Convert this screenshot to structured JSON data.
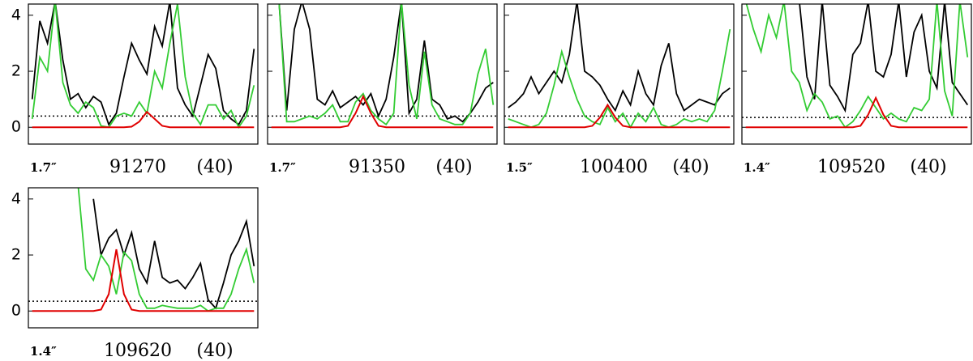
{
  "chart_data": [
    {
      "type": "line",
      "beam": "1.7″",
      "label": "91270",
      "note": "(40)",
      "ylim": [
        -0.6,
        4.4
      ],
      "yticks": [
        0,
        2,
        4
      ],
      "hline": 0.4,
      "series": [
        {
          "color": "#000000",
          "values": [
            1.0,
            3.8,
            3.0,
            4.5,
            2.4,
            1.0,
            1.2,
            0.7,
            1.1,
            0.9,
            0.1,
            0.5,
            1.8,
            3.0,
            2.4,
            1.9,
            3.6,
            2.9,
            4.5,
            1.4,
            0.8,
            0.4,
            1.5,
            2.6,
            2.1,
            0.6,
            0.3,
            0.1,
            0.6,
            2.8
          ]
        },
        {
          "color": "#33cc33",
          "values": [
            0.3,
            2.5,
            2.0,
            4.5,
            1.6,
            0.8,
            0.5,
            0.9,
            0.7,
            0.05,
            0.0,
            0.4,
            0.5,
            0.4,
            0.9,
            0.5,
            2.0,
            1.4,
            3.0,
            4.4,
            1.8,
            0.5,
            0.1,
            0.8,
            0.8,
            0.3,
            0.6,
            0.0,
            0.4,
            1.5
          ]
        },
        {
          "color": "#e00000",
          "values": [
            0,
            0,
            0,
            0,
            0,
            0,
            0,
            0,
            0,
            0,
            0,
            0,
            0,
            0.02,
            0.2,
            0.55,
            0.3,
            0.05,
            0,
            0,
            0,
            0,
            0,
            0,
            0,
            0,
            0,
            0,
            0,
            0
          ]
        }
      ]
    },
    {
      "type": "line",
      "beam": "1.7″",
      "label": "91350",
      "note": "(40)",
      "ylim": [
        -0.6,
        4.4
      ],
      "yticks": [
        0,
        2,
        4
      ],
      "hline": 0.4,
      "series": [
        {
          "color": "#000000",
          "values": [
            4.5,
            4.5,
            0.6,
            3.5,
            4.5,
            3.5,
            1.0,
            0.8,
            1.3,
            0.7,
            0.9,
            1.1,
            0.8,
            1.2,
            0.4,
            1.0,
            2.5,
            4.5,
            0.5,
            1.0,
            3.1,
            1.0,
            0.8,
            0.3,
            0.4,
            0.2,
            0.5,
            0.9,
            1.4,
            1.6
          ]
        },
        {
          "color": "#33cc33",
          "values": [
            4.5,
            4.5,
            0.2,
            0.2,
            0.3,
            0.4,
            0.3,
            0.5,
            0.8,
            0.2,
            0.2,
            0.9,
            1.2,
            0.6,
            0.3,
            0.1,
            0.5,
            4.5,
            1.5,
            0.3,
            2.7,
            0.8,
            0.3,
            0.2,
            0.1,
            0.1,
            0.5,
            1.9,
            2.8,
            0.8
          ]
        },
        {
          "color": "#e00000",
          "values": [
            0,
            0,
            0,
            0,
            0,
            0,
            0,
            0,
            0,
            0,
            0.05,
            0.5,
            1.1,
            0.5,
            0.05,
            0,
            0,
            0,
            0,
            0,
            0,
            0,
            0,
            0,
            0,
            0,
            0,
            0,
            0,
            0
          ]
        }
      ]
    },
    {
      "type": "line",
      "beam": "1.5″",
      "label": "100400",
      "note": "(40)",
      "ylim": [
        -0.6,
        4.4
      ],
      "yticks": [
        0,
        2,
        4
      ],
      "hline": 0.4,
      "series": [
        {
          "color": "#000000",
          "values": [
            0.7,
            0.9,
            1.2,
            1.8,
            1.2,
            1.6,
            2.0,
            1.6,
            2.6,
            4.5,
            2.0,
            1.8,
            1.5,
            1.0,
            0.6,
            1.3,
            0.8,
            2.0,
            1.2,
            0.8,
            2.2,
            3.0,
            1.2,
            0.6,
            0.8,
            1.0,
            0.9,
            0.8,
            1.2,
            1.4
          ]
        },
        {
          "color": "#33cc33",
          "values": [
            0.3,
            0.2,
            0.1,
            0.0,
            0.1,
            0.5,
            1.5,
            2.7,
            1.8,
            1.0,
            0.4,
            0.2,
            0.1,
            0.7,
            0.2,
            0.5,
            0.0,
            0.5,
            0.2,
            0.7,
            0.1,
            0.0,
            0.1,
            0.3,
            0.2,
            0.3,
            0.2,
            0.6,
            2.0,
            3.5
          ]
        },
        {
          "color": "#e00000",
          "values": [
            0,
            0,
            0,
            0,
            0,
            0,
            0,
            0,
            0,
            0,
            0,
            0.05,
            0.35,
            0.8,
            0.35,
            0.05,
            0,
            0,
            0,
            0,
            0,
            0,
            0,
            0,
            0,
            0,
            0,
            0,
            0,
            0
          ]
        }
      ]
    },
    {
      "type": "line",
      "beam": "1.4″",
      "label": "109520",
      "note": "(40)",
      "ylim": [
        -0.6,
        4.4
      ],
      "yticks": [
        0,
        2,
        4
      ],
      "hline": 0.35,
      "series": [
        {
          "color": "#000000",
          "values": [
            4.5,
            4.5,
            4.5,
            4.5,
            4.5,
            4.5,
            4.5,
            4.5,
            1.8,
            1.0,
            4.5,
            1.5,
            1.1,
            0.6,
            2.6,
            3.0,
            4.5,
            2.0,
            1.8,
            2.6,
            4.5,
            1.8,
            3.4,
            4.0,
            2.0,
            1.4,
            4.5,
            1.6,
            1.2,
            0.8
          ]
        },
        {
          "color": "#33cc33",
          "values": [
            4.5,
            3.5,
            2.7,
            4.0,
            3.2,
            4.5,
            2.0,
            1.6,
            0.6,
            1.2,
            0.9,
            0.3,
            0.4,
            0.0,
            0.2,
            0.6,
            1.1,
            0.7,
            0.3,
            0.5,
            0.3,
            0.2,
            0.7,
            0.6,
            1.0,
            4.5,
            1.3,
            0.4,
            4.5,
            2.5
          ]
        },
        {
          "color": "#e00000",
          "values": [
            0,
            0,
            0,
            0,
            0,
            0,
            0,
            0,
            0,
            0,
            0,
            0,
            0,
            0,
            0,
            0.05,
            0.45,
            1.05,
            0.45,
            0.05,
            0,
            0,
            0,
            0,
            0,
            0,
            0,
            0,
            0,
            0
          ]
        }
      ]
    },
    {
      "type": "line",
      "beam": "1.4″",
      "label": "109620",
      "note": "(40)",
      "ylim": [
        -0.6,
        4.4
      ],
      "yticks": [
        0,
        2,
        4
      ],
      "hline": 0.35,
      "series": [
        {
          "color": "#000000",
          "values": [
            null,
            null,
            null,
            null,
            null,
            null,
            null,
            null,
            4.0,
            2.0,
            2.6,
            2.9,
            2.0,
            2.8,
            1.5,
            1.0,
            2.5,
            1.2,
            1.0,
            1.1,
            0.8,
            1.2,
            1.7,
            0.4,
            0.1,
            1.0,
            2.0,
            2.5,
            3.2,
            1.6
          ]
        },
        {
          "color": "#33cc33",
          "values": [
            null,
            null,
            null,
            null,
            4.5,
            4.5,
            4.5,
            1.5,
            1.1,
            2.0,
            1.6,
            0.6,
            2.1,
            1.8,
            0.6,
            0.1,
            0.1,
            0.2,
            0.15,
            0.1,
            0.1,
            0.1,
            0.2,
            0.0,
            0.1,
            0.1,
            0.6,
            1.5,
            2.2,
            1.0
          ]
        },
        {
          "color": "#e00000",
          "values": [
            0,
            0,
            0,
            0,
            0,
            0,
            0,
            0,
            0,
            0.05,
            0.6,
            2.2,
            0.6,
            0.05,
            0,
            0,
            0,
            0,
            0,
            0,
            0,
            0,
            0,
            0,
            0,
            0,
            0,
            0,
            0,
            0
          ]
        }
      ]
    }
  ]
}
